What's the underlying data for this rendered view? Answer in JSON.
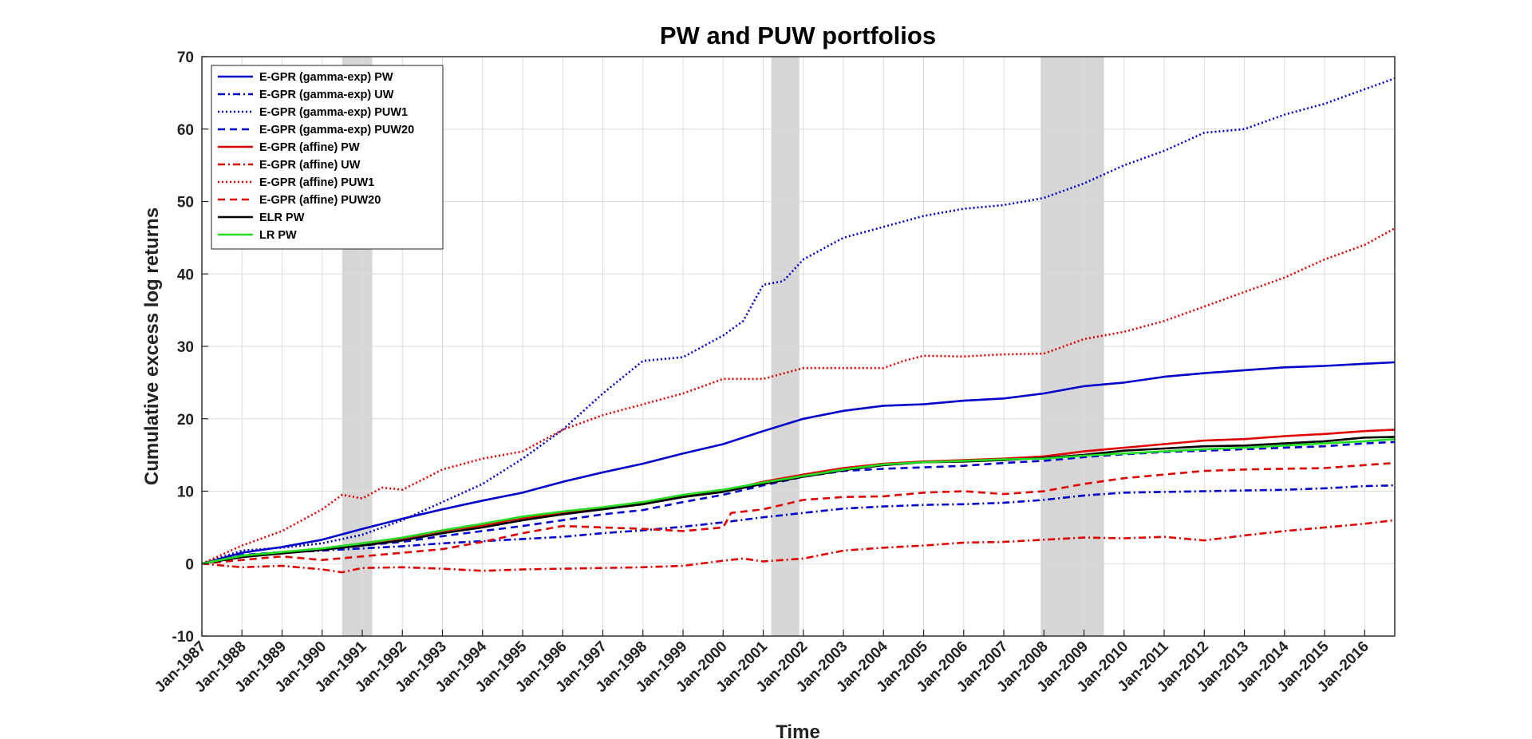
{
  "chart_data": {
    "type": "line",
    "title": "PW and PUW portfolios",
    "xlabel": "Time",
    "ylabel": "Cumulative excess log returns",
    "xlim": [
      1987,
      2016.75
    ],
    "ylim": [
      -10,
      70
    ],
    "yticks": [
      -10,
      0,
      10,
      20,
      30,
      40,
      50,
      60,
      70
    ],
    "xtick_labels": [
      "Jan-1987",
      "Jan-1988",
      "Jan-1989",
      "Jan-1990",
      "Jan-1991",
      "Jan-1992",
      "Jan-1993",
      "Jan-1994",
      "Jan-1995",
      "Jan-1996",
      "Jan-1997",
      "Jan-1998",
      "Jan-1999",
      "Jan-2000",
      "Jan-2001",
      "Jan-2002",
      "Jan-2003",
      "Jan-2004",
      "Jan-2005",
      "Jan-2006",
      "Jan-2007",
      "Jan-2008",
      "Jan-2009",
      "Jan-2010",
      "Jan-2011",
      "Jan-2012",
      "Jan-2013",
      "Jan-2014",
      "Jan-2015",
      "Jan-2016"
    ],
    "grid": true,
    "legend_position": "top-left",
    "recession_bands": [
      [
        1990.5,
        1991.25
      ],
      [
        2001.2,
        2001.9
      ],
      [
        2007.92,
        2009.5
      ]
    ],
    "series": [
      {
        "name": "E-GPR (gamma-exp) PW",
        "color": "#0000cc",
        "style": "solid",
        "x": [
          1987,
          1988,
          1989,
          1990,
          1991,
          1992,
          1993,
          1994,
          1995,
          1996,
          1997,
          1998,
          1999,
          2000,
          2001,
          2002,
          2003,
          2004,
          2005,
          2006,
          2007,
          2008,
          2009,
          2010,
          2011,
          2012,
          2013,
          2014,
          2015,
          2016,
          2016.75
        ],
        "y": [
          0,
          1.5,
          2.3,
          3.3,
          4.8,
          6.2,
          7.5,
          8.7,
          9.8,
          11.3,
          12.6,
          13.8,
          15.2,
          16.5,
          18.3,
          20.0,
          21.1,
          21.8,
          22.0,
          22.5,
          22.8,
          23.5,
          24.5,
          25.0,
          25.8,
          26.3,
          26.7,
          27.1,
          27.3,
          27.6,
          27.8
        ]
      },
      {
        "name": "E-GPR (gamma-exp) UW",
        "color": "#0000cc",
        "style": "dashdot",
        "x": [
          1987,
          1988,
          1989,
          1990,
          1991,
          1992,
          1993,
          1994,
          1995,
          1996,
          1997,
          1998,
          1999,
          2000,
          2001,
          2002,
          2003,
          2004,
          2005,
          2006,
          2007,
          2008,
          2009,
          2010,
          2011,
          2012,
          2013,
          2014,
          2015,
          2016,
          2016.75
        ],
        "y": [
          0,
          1.1,
          1.5,
          1.8,
          2.1,
          2.4,
          2.8,
          3.1,
          3.4,
          3.7,
          4.2,
          4.6,
          5.1,
          5.7,
          6.4,
          7.0,
          7.6,
          7.9,
          8.1,
          8.2,
          8.4,
          8.8,
          9.4,
          9.8,
          9.9,
          10.0,
          10.1,
          10.2,
          10.4,
          10.7,
          10.8
        ]
      },
      {
        "name": "E-GPR (gamma-exp) PUW1",
        "color": "#0000cc",
        "style": "dotted",
        "x": [
          1987,
          1988,
          1989,
          1990,
          1991,
          1992,
          1993,
          1994,
          1995,
          1996,
          1997,
          1998,
          1999,
          2000,
          2000.5,
          2001,
          2001.5,
          2002,
          2003,
          2004,
          2005,
          2006,
          2007,
          2008,
          2009,
          2010,
          2011,
          2012,
          2013,
          2014,
          2015,
          2016,
          2016.75
        ],
        "y": [
          0,
          1.8,
          2.2,
          2.8,
          4.0,
          6.0,
          8.5,
          11.0,
          14.5,
          18.5,
          23.5,
          28.0,
          28.5,
          31.5,
          33.5,
          38.5,
          39.0,
          42.0,
          45.0,
          46.5,
          48.0,
          49.0,
          49.5,
          50.5,
          52.5,
          55.0,
          57.0,
          59.5,
          60.0,
          62.0,
          63.5,
          65.5,
          67.0
        ]
      },
      {
        "name": "E-GPR (gamma-exp) PUW20",
        "color": "#0000cc",
        "style": "dashed",
        "x": [
          1987,
          1988,
          1989,
          1990,
          1991,
          1992,
          1993,
          1994,
          1995,
          1996,
          1997,
          1998,
          1999,
          2000,
          2001,
          2002,
          2003,
          2004,
          2005,
          2006,
          2007,
          2008,
          2009,
          2010,
          2011,
          2012,
          2013,
          2014,
          2015,
          2016,
          2016.75
        ],
        "y": [
          0,
          1.2,
          1.6,
          2.0,
          2.5,
          3.0,
          3.8,
          4.5,
          5.2,
          6.0,
          6.8,
          7.4,
          8.5,
          9.5,
          10.8,
          12.0,
          12.8,
          13.1,
          13.3,
          13.5,
          13.9,
          14.2,
          14.7,
          15.1,
          15.4,
          15.6,
          15.8,
          16.0,
          16.2,
          16.6,
          16.8
        ]
      },
      {
        "name": "E-GPR (affine) PW",
        "color": "#e00000",
        "style": "solid",
        "x": [
          1987,
          1988,
          1989,
          1990,
          1991,
          1992,
          1993,
          1994,
          1995,
          1996,
          1997,
          1998,
          1999,
          2000,
          2001,
          2002,
          2003,
          2004,
          2005,
          2006,
          2007,
          2008,
          2009,
          2010,
          2011,
          2012,
          2013,
          2014,
          2015,
          2016,
          2016.75
        ],
        "y": [
          0,
          1.0,
          1.5,
          2.0,
          2.8,
          3.5,
          4.5,
          5.3,
          6.3,
          7.0,
          7.6,
          8.3,
          9.3,
          10.0,
          11.3,
          12.3,
          13.2,
          13.8,
          14.1,
          14.3,
          14.5,
          14.8,
          15.5,
          16.0,
          16.5,
          17.0,
          17.2,
          17.6,
          17.9,
          18.3,
          18.5
        ]
      },
      {
        "name": "E-GPR (affine) UW",
        "color": "#e00000",
        "style": "dashdot",
        "x": [
          1987,
          1988,
          1989,
          1990,
          1990.5,
          1991,
          1992,
          1993,
          1994,
          1995,
          1996,
          1997,
          1998,
          1999,
          2000,
          2000.5,
          2001,
          2002,
          2003,
          2004,
          2005,
          2006,
          2007,
          2008,
          2009,
          2010,
          2011,
          2012,
          2013,
          2014,
          2015,
          2016,
          2016.75
        ],
        "y": [
          0,
          -0.5,
          -0.3,
          -0.8,
          -1.2,
          -0.6,
          -0.5,
          -0.7,
          -1.0,
          -0.8,
          -0.7,
          -0.6,
          -0.5,
          -0.3,
          0.4,
          0.7,
          0.3,
          0.7,
          1.8,
          2.2,
          2.5,
          2.9,
          3.0,
          3.3,
          3.6,
          3.5,
          3.7,
          3.2,
          3.9,
          4.5,
          5.0,
          5.5,
          6.0
        ]
      },
      {
        "name": "E-GPR (affine) PUW1",
        "color": "#e00000",
        "style": "dotted",
        "x": [
          1987,
          1988,
          1989,
          1990,
          1990.5,
          1991,
          1991.5,
          1992,
          1993,
          1994,
          1995,
          1996,
          1997,
          1998,
          1999,
          2000,
          2001,
          2002,
          2003,
          2004,
          2004.5,
          2005,
          2006,
          2007,
          2008,
          2009,
          2010,
          2011,
          2012,
          2013,
          2014,
          2015,
          2016,
          2016.75
        ],
        "y": [
          0,
          2.5,
          4.5,
          7.5,
          9.5,
          9.0,
          10.5,
          10.2,
          13.0,
          14.5,
          15.5,
          18.5,
          20.5,
          22.0,
          23.5,
          25.5,
          25.5,
          27.0,
          27.0,
          27.0,
          28.0,
          28.7,
          28.6,
          28.9,
          29.0,
          31.0,
          32.0,
          33.5,
          35.5,
          37.5,
          39.5,
          42.0,
          44.0,
          46.3
        ]
      },
      {
        "name": "E-GPR (affine) PUW20",
        "color": "#e00000",
        "style": "dashed",
        "x": [
          1987,
          1988,
          1989,
          1990,
          1991,
          1992,
          1993,
          1994,
          1995,
          1996,
          1997,
          1998,
          1999,
          2000,
          2000.2,
          2001,
          2002,
          2003,
          2004,
          2005,
          2006,
          2007,
          2008,
          2009,
          2010,
          2011,
          2012,
          2013,
          2014,
          2015,
          2016,
          2016.75
        ],
        "y": [
          0,
          0.5,
          1.0,
          0.5,
          1.0,
          1.5,
          2.0,
          3.0,
          4.2,
          5.2,
          5.0,
          4.8,
          4.5,
          5.0,
          7.0,
          7.5,
          8.8,
          9.2,
          9.3,
          9.8,
          10.0,
          9.6,
          10.0,
          11.0,
          11.8,
          12.3,
          12.8,
          13.0,
          13.1,
          13.2,
          13.6,
          13.9
        ]
      },
      {
        "name": "ELR PW",
        "color": "#000000",
        "style": "solid",
        "x": [
          1987,
          1988,
          1989,
          1990,
          1991,
          1992,
          1993,
          1994,
          1995,
          1996,
          1997,
          1998,
          1999,
          2000,
          2001,
          2002,
          2003,
          2004,
          2005,
          2006,
          2007,
          2008,
          2009,
          2010,
          2011,
          2012,
          2013,
          2014,
          2015,
          2016,
          2016.75
        ],
        "y": [
          0,
          0.9,
          1.4,
          1.9,
          2.5,
          3.2,
          4.2,
          5.0,
          6.0,
          6.8,
          7.5,
          8.2,
          9.2,
          9.9,
          11.0,
          12.0,
          12.9,
          13.6,
          14.0,
          14.1,
          14.3,
          14.6,
          15.0,
          15.6,
          15.9,
          16.2,
          16.3,
          16.6,
          16.9,
          17.4,
          17.5
        ]
      },
      {
        "name": "LR PW",
        "color": "#22dd22",
        "style": "solid",
        "x": [
          1987,
          1988,
          1989,
          1990,
          1991,
          1992,
          1993,
          1994,
          1995,
          1996,
          1997,
          1998,
          1999,
          2000,
          2001,
          2002,
          2003,
          2004,
          2005,
          2006,
          2007,
          2008,
          2009,
          2010,
          2011,
          2012,
          2013,
          2014,
          2015,
          2016,
          2016.75
        ],
        "y": [
          0,
          1.1,
          1.6,
          2.1,
          2.8,
          3.6,
          4.6,
          5.5,
          6.5,
          7.2,
          7.8,
          8.5,
          9.5,
          10.2,
          11.2,
          12.1,
          13.0,
          13.7,
          14.0,
          14.2,
          14.4,
          14.5,
          14.9,
          15.2,
          15.5,
          15.8,
          16.0,
          16.3,
          16.6,
          16.9,
          17.2
        ]
      }
    ]
  }
}
